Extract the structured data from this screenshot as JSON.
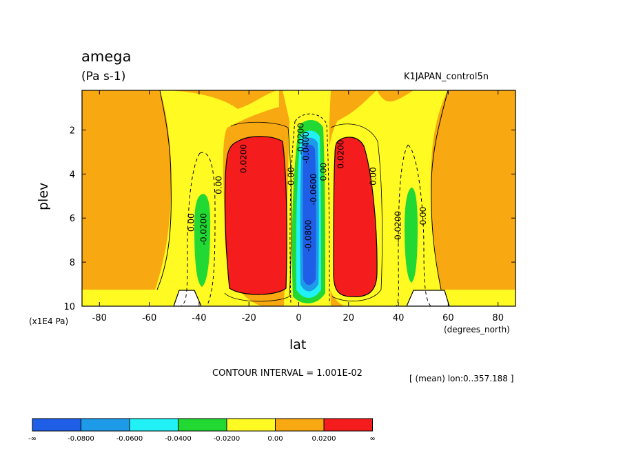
{
  "chart_data": {
    "type": "contour",
    "title": "amega",
    "units": "(Pa s-1)",
    "run_label": "K1JAPAN_control5n",
    "xlabel": "lat",
    "x_unit": "(degrees_north)",
    "ylabel": "plev",
    "y_unit": "(x1E4 Pa)",
    "contour_interval_label": "CONTOUR INTERVAL = 1.001E-02",
    "mean_label": "[ (mean) lon:0..357.188 ]",
    "xlim": [
      -87,
      87
    ],
    "ylim": [
      10,
      0.2
    ],
    "x_ticks": [
      -80,
      -60,
      -40,
      -20,
      0,
      20,
      40,
      60,
      80
    ],
    "y_ticks": [
      2,
      4,
      6,
      8,
      10
    ],
    "levels": [
      "-∞",
      "-0.0800",
      "-0.0600",
      "-0.0400",
      "-0.0200",
      "0.00",
      "0.0200",
      "∞"
    ],
    "level_colors": [
      "#1f5fe8",
      "#1e9be8",
      "#21f0f4",
      "#22d833",
      "#fffa22",
      "#f8a810",
      "#f41c1c"
    ],
    "contour_labels": [
      {
        "text": "0.00",
        "x": -42,
        "y": 6.2
      },
      {
        "text": "0.00",
        "x": -31,
        "y": 4.5
      },
      {
        "text": "-0.0200",
        "x": -37,
        "y": 6.5
      },
      {
        "text": "0.0200",
        "x": -21,
        "y": 3.3
      },
      {
        "text": "0.00",
        "x": -2,
        "y": 4.1
      },
      {
        "text": "-0.0200",
        "x": 2,
        "y": 2.4
      },
      {
        "text": "-0.0400",
        "x": 4,
        "y": 2.8
      },
      {
        "text": "-0.0600",
        "x": 7,
        "y": 4.7
      },
      {
        "text": "-0.0800",
        "x": 5,
        "y": 6.8
      },
      {
        "text": "0.00",
        "x": 11,
        "y": 3.9
      },
      {
        "text": "0.0200",
        "x": 18,
        "y": 3.1
      },
      {
        "text": "0.00",
        "x": 31,
        "y": 4.1
      },
      {
        "text": "-0.0200",
        "x": 41,
        "y": 6.4
      },
      {
        "text": "0.00",
        "x": 51,
        "y": 5.9
      }
    ]
  }
}
